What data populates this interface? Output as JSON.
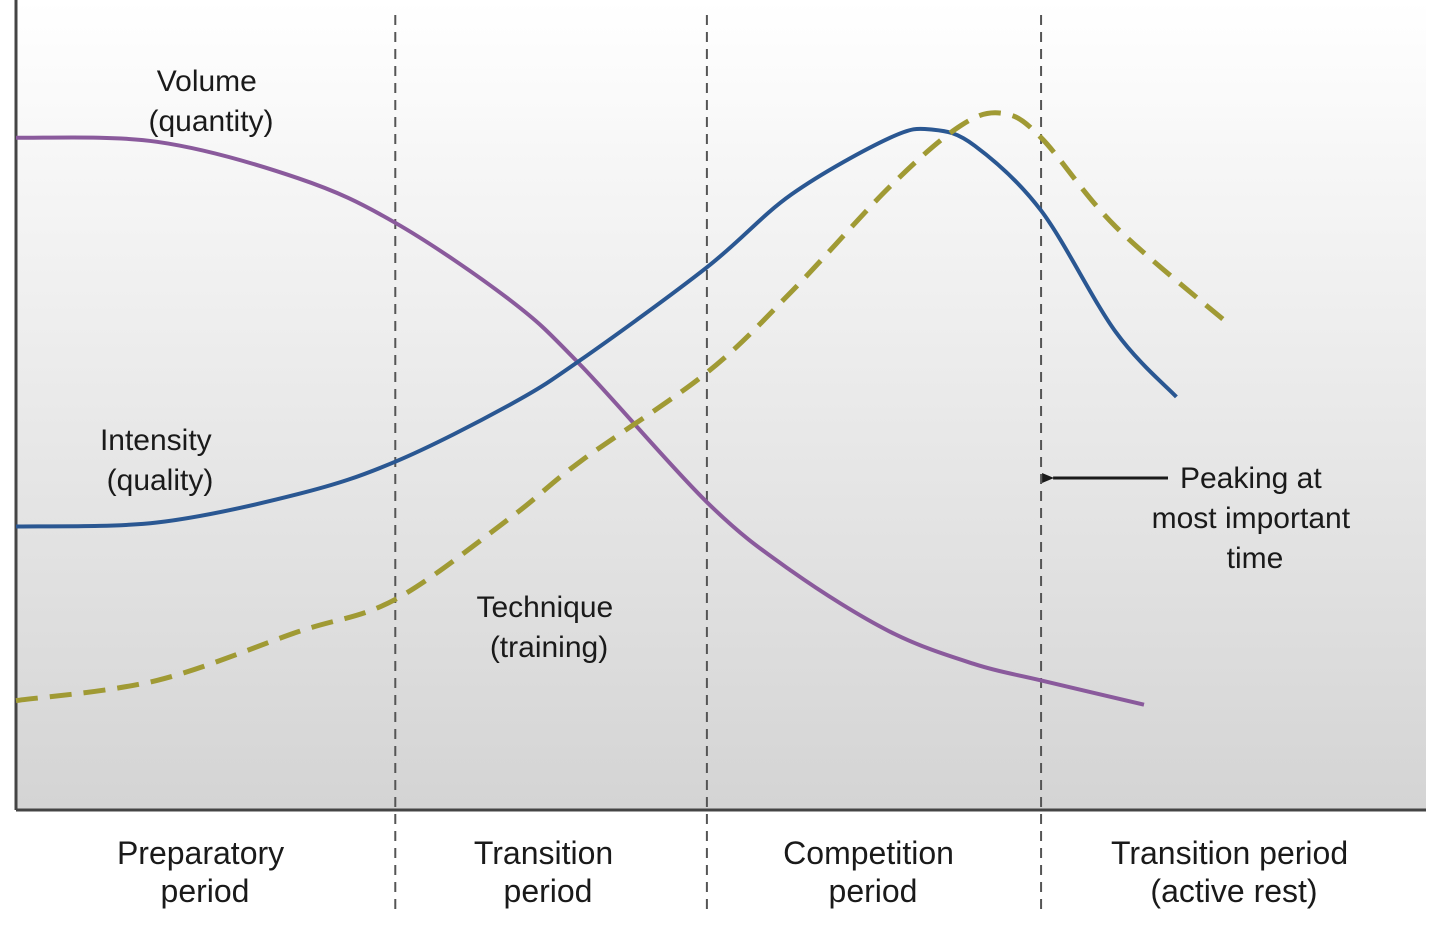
{
  "chart_data": {
    "type": "line",
    "title": "",
    "xlabel": "",
    "ylabel": "",
    "xlim": [
      0,
      100
    ],
    "ylim": [
      0,
      100
    ],
    "grid": false,
    "legend": "none",
    "periods": [
      {
        "name": "Preparatory period",
        "lines": [
          "Preparatory",
          "period"
        ],
        "start": 0,
        "end": 26.9
      },
      {
        "name": "Transition period",
        "lines": [
          "Transition",
          "period"
        ],
        "start": 26.9,
        "end": 49.0
      },
      {
        "name": "Competition period",
        "lines": [
          "Competition",
          "period"
        ],
        "start": 49.0,
        "end": 72.7
      },
      {
        "name": "Transition period (active rest)",
        "lines": [
          "Transition period",
          "(active rest)"
        ],
        "start": 72.7,
        "end": 100
      }
    ],
    "dividers": [
      26.9,
      49.0,
      72.7
    ],
    "series": [
      {
        "name": "Volume (quantity)",
        "label_lines": [
          "Volume",
          "(quantity)"
        ],
        "color": "#8a5a9c",
        "dash": "solid",
        "x": [
          0,
          10,
          20,
          26.9,
          35,
          40,
          49,
          55,
          62,
          68,
          72.7,
          80
        ],
        "y": [
          83,
          82.5,
          78,
          72.5,
          63,
          55,
          38,
          29.5,
          22,
          18,
          16,
          13
        ]
      },
      {
        "name": "Intensity (quality)",
        "label_lines": [
          "Intensity",
          "(quality)"
        ],
        "color": "#2a5792",
        "dash": "solid",
        "x": [
          0,
          10,
          20,
          26.9,
          35,
          40,
          49,
          55,
          62,
          65,
          68,
          72.7,
          78,
          82.3
        ],
        "y": [
          35,
          35.5,
          39,
          43,
          50,
          55.5,
          67,
          76,
          83,
          84,
          82,
          74,
          59,
          51
        ]
      },
      {
        "name": "Technique (training)",
        "label_lines": [
          "Technique",
          "(training)"
        ],
        "color": "#a09a34",
        "dash": "dashed",
        "x": [
          0,
          10,
          20,
          26.9,
          35,
          40,
          49,
          55,
          62,
          67,
          70,
          72.7,
          78,
          86
        ],
        "y": [
          13.5,
          16,
          22,
          26,
          36,
          43,
          54,
          64,
          77,
          84.5,
          86,
          83,
          72,
          60
        ]
      }
    ],
    "annotations": [
      {
        "text_lines": [
          "Peaking at",
          "most important",
          "time"
        ],
        "points_to": 72.7
      }
    ]
  }
}
